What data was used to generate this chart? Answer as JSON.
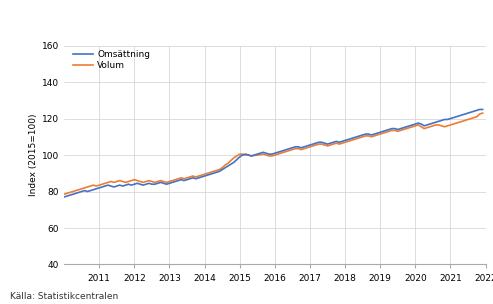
{
  "title": "",
  "ylabel": "Index (2015=100)",
  "source": "Källa: Statistikcentralen",
  "ylim": [
    40,
    160
  ],
  "yticks": [
    40,
    60,
    80,
    100,
    120,
    140,
    160
  ],
  "xlim": [
    2010.0,
    2022.0
  ],
  "xticks": [
    2011,
    2012,
    2013,
    2014,
    2015,
    2016,
    2017,
    2018,
    2019,
    2020,
    2021,
    2022
  ],
  "line_omsa_color": "#4472C4",
  "line_volum_color": "#ED7D31",
  "legend_labels": [
    "Omsättning",
    "Volum"
  ],
  "background_color": "#ffffff",
  "grid_color": "#d0d0d0",
  "omsa_x": [
    2010.0,
    2010.083,
    2010.167,
    2010.25,
    2010.333,
    2010.417,
    2010.5,
    2010.583,
    2010.667,
    2010.75,
    2010.833,
    2010.917,
    2011.0,
    2011.083,
    2011.167,
    2011.25,
    2011.333,
    2011.417,
    2011.5,
    2011.583,
    2011.667,
    2011.75,
    2011.833,
    2011.917,
    2012.0,
    2012.083,
    2012.167,
    2012.25,
    2012.333,
    2012.417,
    2012.5,
    2012.583,
    2012.667,
    2012.75,
    2012.833,
    2012.917,
    2013.0,
    2013.083,
    2013.167,
    2013.25,
    2013.333,
    2013.417,
    2013.5,
    2013.583,
    2013.667,
    2013.75,
    2013.833,
    2013.917,
    2014.0,
    2014.083,
    2014.167,
    2014.25,
    2014.333,
    2014.417,
    2014.5,
    2014.583,
    2014.667,
    2014.75,
    2014.833,
    2014.917,
    2015.0,
    2015.083,
    2015.167,
    2015.25,
    2015.333,
    2015.417,
    2015.5,
    2015.583,
    2015.667,
    2015.75,
    2015.833,
    2015.917,
    2016.0,
    2016.083,
    2016.167,
    2016.25,
    2016.333,
    2016.417,
    2016.5,
    2016.583,
    2016.667,
    2016.75,
    2016.833,
    2016.917,
    2017.0,
    2017.083,
    2017.167,
    2017.25,
    2017.333,
    2017.417,
    2017.5,
    2017.583,
    2017.667,
    2017.75,
    2017.833,
    2017.917,
    2018.0,
    2018.083,
    2018.167,
    2018.25,
    2018.333,
    2018.417,
    2018.5,
    2018.583,
    2018.667,
    2018.75,
    2018.833,
    2018.917,
    2019.0,
    2019.083,
    2019.167,
    2019.25,
    2019.333,
    2019.417,
    2019.5,
    2019.583,
    2019.667,
    2019.75,
    2019.833,
    2019.917,
    2020.0,
    2020.083,
    2020.167,
    2020.25,
    2020.333,
    2020.417,
    2020.5,
    2020.583,
    2020.667,
    2020.75,
    2020.833,
    2020.917,
    2021.0,
    2021.083,
    2021.167,
    2021.25,
    2021.333,
    2021.417,
    2021.5,
    2021.583,
    2021.667,
    2021.75,
    2021.833,
    2021.917
  ],
  "omsa_y": [
    77.0,
    77.5,
    78.0,
    78.5,
    79.0,
    79.5,
    80.0,
    80.5,
    80.0,
    80.5,
    81.0,
    81.5,
    82.0,
    82.5,
    83.0,
    83.5,
    83.0,
    82.5,
    83.0,
    83.5,
    83.0,
    83.5,
    84.0,
    83.5,
    84.0,
    84.5,
    84.0,
    83.5,
    84.0,
    84.5,
    84.0,
    84.0,
    84.5,
    85.0,
    84.5,
    84.0,
    84.5,
    85.0,
    85.5,
    86.0,
    86.5,
    86.0,
    86.5,
    87.0,
    87.5,
    87.0,
    87.5,
    88.0,
    88.5,
    89.0,
    89.5,
    90.0,
    90.5,
    91.0,
    92.0,
    93.0,
    94.0,
    95.0,
    96.0,
    97.5,
    99.0,
    100.0,
    100.5,
    100.0,
    99.5,
    100.0,
    100.5,
    101.0,
    101.5,
    101.0,
    100.5,
    100.5,
    101.0,
    101.5,
    102.0,
    102.5,
    103.0,
    103.5,
    104.0,
    104.5,
    104.5,
    104.0,
    104.5,
    105.0,
    105.5,
    106.0,
    106.5,
    107.0,
    107.0,
    106.5,
    106.0,
    106.5,
    107.0,
    107.5,
    107.0,
    107.5,
    108.0,
    108.5,
    109.0,
    109.5,
    110.0,
    110.5,
    111.0,
    111.5,
    111.5,
    111.0,
    111.5,
    112.0,
    112.5,
    113.0,
    113.5,
    114.0,
    114.5,
    114.5,
    114.0,
    114.5,
    115.0,
    115.5,
    116.0,
    116.5,
    117.0,
    117.5,
    117.0,
    116.0,
    116.5,
    117.0,
    117.5,
    118.0,
    118.5,
    119.0,
    119.5,
    119.5,
    120.0,
    120.5,
    121.0,
    121.5,
    122.0,
    122.5,
    123.0,
    123.5,
    124.0,
    124.5,
    125.0,
    125.0
  ],
  "volum_y": [
    78.5,
    79.0,
    79.5,
    80.0,
    80.5,
    81.0,
    81.5,
    82.0,
    82.5,
    83.0,
    83.5,
    83.0,
    83.5,
    84.0,
    84.5,
    85.0,
    85.5,
    85.0,
    85.5,
    86.0,
    85.5,
    85.0,
    85.5,
    86.0,
    86.5,
    86.0,
    85.5,
    85.0,
    85.5,
    86.0,
    85.5,
    85.0,
    85.5,
    86.0,
    85.5,
    85.0,
    85.5,
    86.0,
    86.5,
    87.0,
    87.5,
    87.0,
    87.5,
    88.0,
    88.5,
    88.0,
    88.5,
    89.0,
    89.5,
    90.0,
    90.5,
    91.0,
    91.5,
    92.0,
    93.0,
    94.5,
    95.5,
    97.0,
    98.5,
    99.5,
    100.5,
    100.5,
    100.0,
    100.0,
    99.5,
    99.8,
    100.0,
    100.2,
    100.5,
    100.0,
    99.5,
    99.5,
    100.0,
    100.5,
    101.0,
    101.5,
    102.0,
    102.5,
    103.0,
    103.5,
    103.5,
    103.0,
    103.5,
    104.0,
    104.5,
    105.0,
    105.5,
    106.0,
    106.0,
    105.5,
    105.0,
    105.5,
    106.0,
    106.5,
    106.0,
    106.5,
    107.0,
    107.5,
    108.0,
    108.5,
    109.0,
    109.5,
    110.0,
    110.5,
    110.5,
    110.0,
    110.5,
    111.0,
    111.5,
    112.0,
    112.5,
    113.0,
    113.5,
    113.5,
    113.0,
    113.5,
    114.0,
    114.5,
    115.0,
    115.5,
    116.0,
    116.5,
    115.5,
    114.5,
    115.0,
    115.5,
    116.0,
    116.5,
    116.5,
    116.0,
    115.5,
    116.0,
    116.5,
    117.0,
    117.5,
    118.0,
    118.5,
    119.0,
    119.5,
    120.0,
    120.5,
    121.0,
    122.5,
    123.0
  ]
}
